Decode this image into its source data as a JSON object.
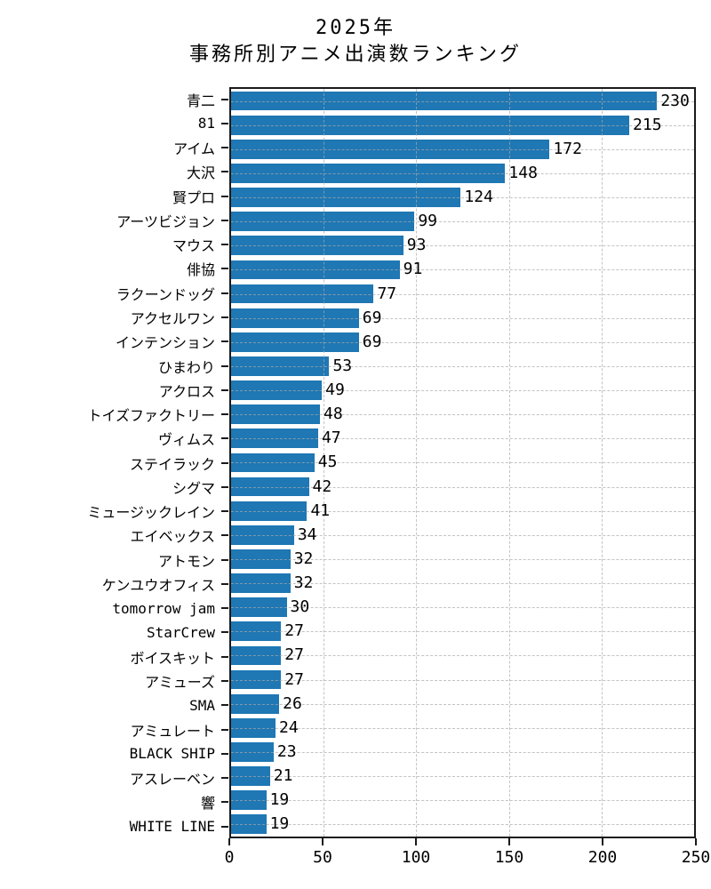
{
  "title": {
    "line1": "2025年",
    "line2": "事務所別アニメ出演数ランキング"
  },
  "chart_data": {
    "type": "bar",
    "orientation": "horizontal",
    "title": "2025年 事務所別アニメ出演数ランキング",
    "xlabel": "",
    "ylabel": "",
    "xlim": [
      0,
      250
    ],
    "x_ticks": [
      0,
      50,
      100,
      150,
      200,
      250
    ],
    "grid": "dashed-both-axes",
    "bar_color": "#1f77b4",
    "categories": [
      "青二",
      "81",
      "アイム",
      "大沢",
      "賢プロ",
      "アーツビジョン",
      "マウス",
      "俳協",
      "ラクーンドッグ",
      "アクセルワン",
      "インテンション",
      "ひまわり",
      "アクロス",
      "トイズファクトリー",
      "ヴィムス",
      "ステイラック",
      "シグマ",
      "ミュージックレイン",
      "エイベックス",
      "アトモン",
      "ケンユウオフィス",
      "tomorrow jam",
      "StarCrew",
      "ボイスキット",
      "アミューズ",
      "SMA",
      "アミュレート",
      "BLACK SHIP",
      "アスレーベン",
      "響",
      "WHITE LINE"
    ],
    "values": [
      230,
      215,
      172,
      148,
      124,
      99,
      93,
      91,
      77,
      69,
      69,
      53,
      49,
      48,
      47,
      45,
      42,
      41,
      34,
      32,
      32,
      30,
      27,
      27,
      27,
      26,
      24,
      23,
      21,
      19,
      19
    ]
  }
}
